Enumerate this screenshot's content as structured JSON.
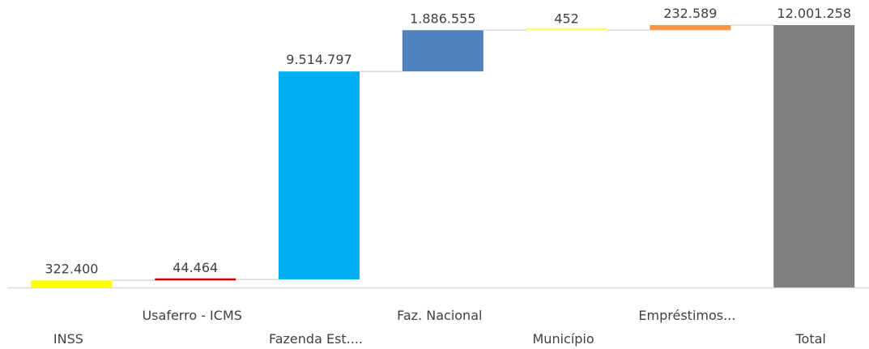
{
  "chart_data": {
    "type": "waterfall",
    "categories": [
      "INSS",
      "Usaferro - ICMS",
      "Fazenda Est....",
      "Faz. Nacional",
      "Município",
      "Empréstimos...",
      "Total"
    ],
    "values": [
      322400,
      44464,
      9514797,
      1886555,
      452,
      232589,
      12001258
    ],
    "value_labels": [
      "322.400",
      "44.464",
      "9.514.797",
      "1.886.555",
      "452",
      "232.589",
      "12.001.258"
    ],
    "measure": [
      "relative",
      "relative",
      "relative",
      "relative",
      "relative",
      "relative",
      "total"
    ],
    "colors": [
      "#ffff00",
      "#c00000",
      "#00b0f0",
      "#4f81bd",
      "#ffff66",
      "#f79646",
      "#808080"
    ]
  }
}
